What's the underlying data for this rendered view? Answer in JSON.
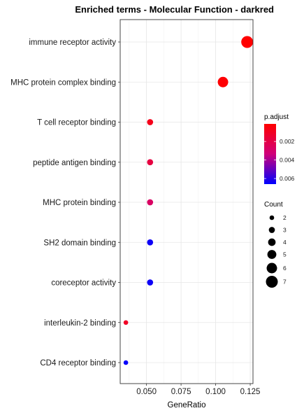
{
  "chart_data": {
    "type": "scatter",
    "title": "Enriched terms - Molecular Function - darkred",
    "xlabel": "GeneRatio",
    "ylabel": "",
    "xlim": [
      0.031,
      0.127
    ],
    "xticks": [
      0.05,
      0.075,
      0.1,
      0.125
    ],
    "xtick_labels": [
      "0.050",
      "0.075",
      "0.100",
      "0.125"
    ],
    "grid": true,
    "categories": [
      "immune receptor activity",
      "MHC protein complex binding",
      "T cell receptor binding",
      "peptide antigen binding",
      "MHC protein binding",
      "SH2 domain binding",
      "coreceptor activity",
      "interleukin-2 binding",
      "CD4 receptor binding"
    ],
    "points": [
      {
        "term": "immune receptor activity",
        "gene_ratio": 0.1228,
        "count": 7,
        "p_adjust": 0.0001
      },
      {
        "term": "MHC protein complex binding",
        "gene_ratio": 0.1053,
        "count": 6,
        "p_adjust": 0.0002
      },
      {
        "term": "T cell receptor binding",
        "gene_ratio": 0.0526,
        "count": 3,
        "p_adjust": 0.0008
      },
      {
        "term": "peptide antigen binding",
        "gene_ratio": 0.0526,
        "count": 3,
        "p_adjust": 0.0018
      },
      {
        "term": "MHC protein binding",
        "gene_ratio": 0.0526,
        "count": 3,
        "p_adjust": 0.0027
      },
      {
        "term": "SH2 domain binding",
        "gene_ratio": 0.0526,
        "count": 3,
        "p_adjust": 0.0064
      },
      {
        "term": "coreceptor activity",
        "gene_ratio": 0.0526,
        "count": 3,
        "p_adjust": 0.0064
      },
      {
        "term": "interleukin-2 binding",
        "gene_ratio": 0.0351,
        "count": 2,
        "p_adjust": 0.0011
      },
      {
        "term": "CD4 receptor binding",
        "gene_ratio": 0.0351,
        "count": 2,
        "p_adjust": 0.0065
      }
    ],
    "color_legend": {
      "title": "p.adjust",
      "range": [
        0.0001,
        0.0066
      ],
      "ticks": [
        0.002,
        0.004,
        0.006
      ],
      "tick_labels": [
        "0.002",
        "0.004",
        "0.006"
      ],
      "low_color": "#ff0000",
      "mid_color": "#d0007a",
      "high_color": "#0000ff"
    },
    "size_legend": {
      "title": "Count",
      "values": [
        2,
        3,
        4,
        5,
        6,
        7
      ],
      "labels": [
        "2",
        "3",
        "4",
        "5",
        "6",
        "7"
      ]
    }
  }
}
